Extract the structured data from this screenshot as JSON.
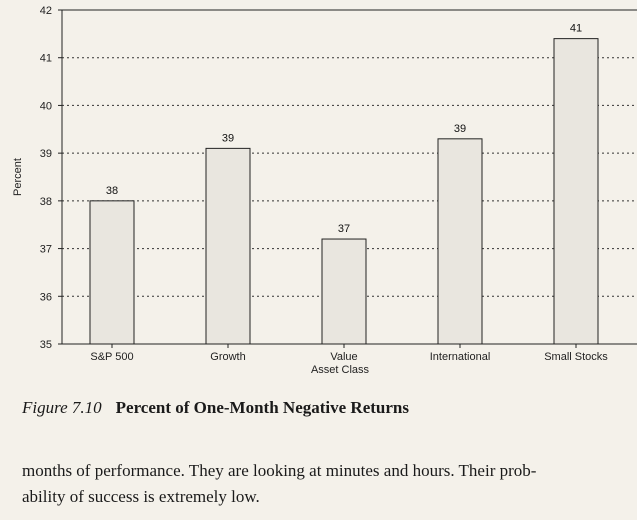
{
  "chart_data": {
    "type": "bar",
    "title": "",
    "xlabel": "Asset Class",
    "ylabel": "Percent",
    "ylim": [
      35,
      42
    ],
    "yticks": [
      35,
      36,
      37,
      38,
      39,
      40,
      41,
      42
    ],
    "categories": [
      "S&P 500",
      "Growth",
      "Value",
      "International",
      "Small Stocks"
    ],
    "values": [
      38,
      39.1,
      37.2,
      39.3,
      41.4
    ],
    "data_labels": [
      "38",
      "39",
      "37",
      "39",
      "41"
    ],
    "grid": "dotted horizontal",
    "bar_fill": "#e9e6df"
  },
  "caption": {
    "figure_number": "Figure 7.10",
    "title": "Percent of One-Month Negative Returns"
  },
  "body_text": {
    "line1": "months of performance. They are looking at minutes and hours. Their prob-",
    "line2": "ability of success is extremely low."
  }
}
